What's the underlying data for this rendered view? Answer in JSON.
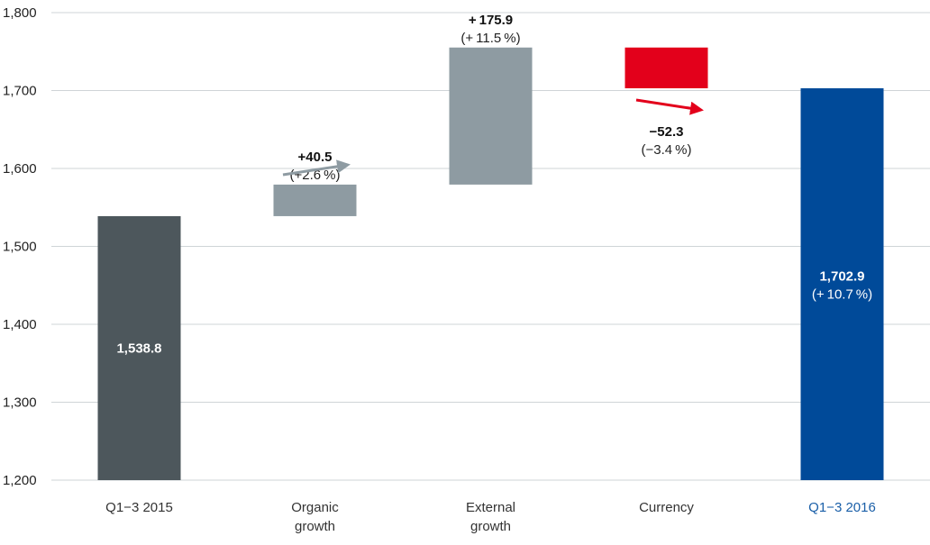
{
  "chart_data": {
    "type": "bar",
    "subtype": "waterfall",
    "ylim": [
      1200,
      1800
    ],
    "yticks": [
      1200,
      1300,
      1400,
      1500,
      1600,
      1700,
      1800
    ],
    "ytick_labels": [
      "1,200",
      "1,300",
      "1,400",
      "1,500",
      "1,600",
      "1,700",
      "1,800"
    ],
    "grid": true,
    "bars": [
      {
        "key": "q1_3_2015",
        "category": [
          "Q1−3 2015"
        ],
        "start": 1200,
        "end": 1538.8,
        "color": "#4d575c",
        "label_color": "#333333",
        "value_label": "1,538.8",
        "pct_label": ""
      },
      {
        "key": "organic_growth",
        "category": [
          "Organic",
          "growth"
        ],
        "start": 1538.8,
        "end": 1579.3,
        "color": "#8e9ba2",
        "label_color": "#333333",
        "value_label": "+40.5",
        "pct_label": "(+2.6 %)"
      },
      {
        "key": "external_growth",
        "category": [
          "External",
          "growth"
        ],
        "start": 1579.3,
        "end": 1755.2,
        "color": "#8e9ba2",
        "label_color": "#333333",
        "value_label": "+ 175.9",
        "pct_label": "(+ 11.5 %)"
      },
      {
        "key": "currency",
        "category": [
          "Currency"
        ],
        "start": 1755.2,
        "end": 1702.9,
        "color": "#e3001b",
        "label_color": "#333333",
        "value_label": "−52.3",
        "pct_label": "(−3.4 %)"
      },
      {
        "key": "q1_3_2016",
        "category": [
          "Q1−3 2016"
        ],
        "start": 1200,
        "end": 1702.9,
        "color": "#004a99",
        "label_color": "#1a5fa8",
        "value_label": "1,702.9",
        "pct_label": "(+ 10.7 %)"
      }
    ],
    "arrows": {
      "up_color": "#8e9ba2",
      "down_color": "#e3001b"
    }
  }
}
